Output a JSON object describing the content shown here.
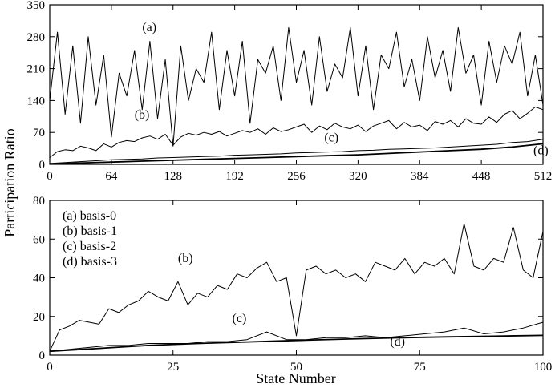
{
  "figure": {
    "ylabel": "Participation Ratio",
    "xlabel": "State Number"
  },
  "chart_data": [
    {
      "type": "line",
      "panel": "top",
      "title": "",
      "xlim": [
        0,
        512
      ],
      "ylim": [
        0,
        350
      ],
      "xticks": [
        0,
        64,
        128,
        192,
        256,
        320,
        384,
        448,
        512
      ],
      "yticks": [
        0,
        70,
        140,
        210,
        280,
        350
      ],
      "xticklabels": [
        "0",
        "64",
        "128",
        "192",
        "256",
        "320",
        "384",
        "448",
        "512"
      ],
      "yticklabels": [
        "0",
        "70",
        "140",
        "210",
        "280",
        "350"
      ],
      "grid": false,
      "series": [
        {
          "name": "(a)",
          "x": [
            0,
            8,
            16,
            24,
            32,
            40,
            48,
            56,
            64,
            72,
            80,
            88,
            96,
            104,
            112,
            120,
            128,
            136,
            144,
            152,
            160,
            168,
            176,
            184,
            192,
            200,
            208,
            216,
            224,
            232,
            240,
            248,
            256,
            264,
            272,
            280,
            288,
            296,
            304,
            312,
            320,
            328,
            336,
            344,
            352,
            360,
            368,
            376,
            384,
            392,
            400,
            408,
            416,
            424,
            432,
            440,
            448,
            456,
            464,
            472,
            480,
            488,
            496,
            504,
            512
          ],
          "y": [
            140,
            290,
            110,
            260,
            90,
            280,
            130,
            240,
            60,
            200,
            150,
            250,
            120,
            270,
            100,
            230,
            40,
            260,
            140,
            210,
            180,
            290,
            120,
            250,
            150,
            270,
            90,
            230,
            200,
            260,
            140,
            300,
            180,
            250,
            130,
            280,
            160,
            220,
            190,
            300,
            150,
            260,
            120,
            240,
            210,
            290,
            170,
            230,
            140,
            280,
            190,
            250,
            160,
            300,
            200,
            240,
            130,
            270,
            180,
            260,
            220,
            290,
            150,
            240,
            130
          ],
          "label_x": 96,
          "label_y": 292
        },
        {
          "name": "(b)",
          "x": [
            0,
            8,
            16,
            24,
            32,
            40,
            48,
            56,
            64,
            72,
            80,
            88,
            96,
            104,
            112,
            120,
            128,
            136,
            144,
            152,
            160,
            168,
            176,
            184,
            192,
            200,
            208,
            216,
            224,
            232,
            240,
            248,
            256,
            264,
            272,
            280,
            288,
            296,
            304,
            312,
            320,
            328,
            336,
            344,
            352,
            360,
            368,
            376,
            384,
            392,
            400,
            408,
            416,
            424,
            432,
            440,
            448,
            456,
            464,
            472,
            480,
            488,
            496,
            504,
            512
          ],
          "y": [
            15,
            28,
            32,
            30,
            40,
            36,
            30,
            45,
            38,
            48,
            52,
            50,
            58,
            62,
            55,
            66,
            42,
            60,
            68,
            64,
            70,
            66,
            72,
            62,
            68,
            74,
            70,
            78,
            66,
            80,
            72,
            76,
            82,
            88,
            70,
            84,
            76,
            90,
            82,
            78,
            86,
            72,
            84,
            90,
            96,
            78,
            92,
            82,
            86,
            74,
            94,
            88,
            96,
            82,
            100,
            90,
            88,
            104,
            92,
            110,
            118,
            100,
            112,
            126,
            120
          ],
          "label_x": 88,
          "label_y": 100
        },
        {
          "name": "(c)",
          "x": [
            0,
            16,
            32,
            48,
            64,
            80,
            96,
            112,
            128,
            144,
            160,
            176,
            192,
            208,
            224,
            240,
            256,
            272,
            288,
            304,
            320,
            336,
            352,
            368,
            384,
            400,
            416,
            432,
            448,
            464,
            480,
            496,
            512
          ],
          "y": [
            2,
            4,
            6,
            8,
            10,
            11,
            12,
            14,
            15,
            16,
            17,
            18,
            20,
            21,
            22,
            23,
            25,
            26,
            27,
            28,
            30,
            31,
            33,
            34,
            35,
            36,
            38,
            40,
            42,
            44,
            48,
            50,
            55
          ],
          "label_x": 285,
          "label_y": 50
        },
        {
          "name": "(d)",
          "x": [
            0,
            32,
            64,
            96,
            128,
            160,
            192,
            224,
            256,
            288,
            320,
            352,
            384,
            416,
            448,
            480,
            512
          ],
          "y": [
            1,
            3,
            5,
            7,
            9,
            11,
            13,
            15,
            17,
            19,
            21,
            24,
            27,
            30,
            33,
            38,
            45
          ],
          "label_x": 502,
          "label_y": 22
        }
      ]
    },
    {
      "type": "line",
      "panel": "bottom",
      "title": "",
      "xlim": [
        0,
        100
      ],
      "ylim": [
        0,
        80
      ],
      "xticks": [
        0,
        25,
        50,
        75,
        100
      ],
      "yticks": [
        0,
        20,
        40,
        60,
        80
      ],
      "xticklabels": [
        "0",
        "25",
        "50",
        "75",
        "100"
      ],
      "yticklabels": [
        "0",
        "20",
        "40",
        "60",
        "80"
      ],
      "grid": false,
      "legend_position": "top-left",
      "legend": [
        "(a)  basis-0",
        "(b)  basis-1",
        "(c)  basis-2",
        "(d)  basis-3"
      ],
      "series": [
        {
          "name": "(b)",
          "x": [
            0,
            2,
            4,
            6,
            8,
            10,
            12,
            14,
            16,
            18,
            20,
            22,
            24,
            26,
            28,
            30,
            32,
            34,
            36,
            38,
            40,
            42,
            44,
            46,
            48,
            50,
            52,
            54,
            56,
            58,
            60,
            62,
            64,
            66,
            68,
            70,
            72,
            74,
            76,
            78,
            80,
            82,
            84,
            86,
            88,
            90,
            92,
            94,
            96,
            98,
            100
          ],
          "y": [
            2,
            13,
            15,
            18,
            17,
            16,
            24,
            22,
            26,
            28,
            33,
            30,
            28,
            38,
            26,
            32,
            30,
            36,
            34,
            42,
            40,
            45,
            48,
            38,
            40,
            10,
            44,
            46,
            42,
            44,
            40,
            42,
            38,
            48,
            46,
            44,
            50,
            42,
            48,
            46,
            50,
            42,
            68,
            46,
            44,
            50,
            48,
            66,
            44,
            40,
            64
          ],
          "label_x": 26,
          "label_y": 48
        },
        {
          "name": "(c)",
          "x": [
            0,
            4,
            8,
            12,
            16,
            20,
            24,
            28,
            32,
            36,
            40,
            44,
            48,
            52,
            56,
            60,
            64,
            68,
            72,
            76,
            80,
            84,
            88,
            92,
            96,
            100
          ],
          "y": [
            2,
            3,
            4,
            5,
            5,
            6,
            6,
            6,
            7,
            7,
            8,
            12,
            8,
            8,
            9,
            9,
            10,
            9,
            10,
            11,
            12,
            14,
            11,
            12,
            14,
            17
          ],
          "label_x": 37,
          "label_y": 17
        },
        {
          "name": "(d)",
          "x": [
            0,
            10,
            20,
            30,
            40,
            50,
            60,
            70,
            80,
            90,
            100
          ],
          "y": [
            2,
            3.5,
            5,
            6,
            6.8,
            7.6,
            8.3,
            8.9,
            9.4,
            9.8,
            10.2
          ],
          "label_x": 69,
          "label_y": 5
        }
      ]
    }
  ]
}
